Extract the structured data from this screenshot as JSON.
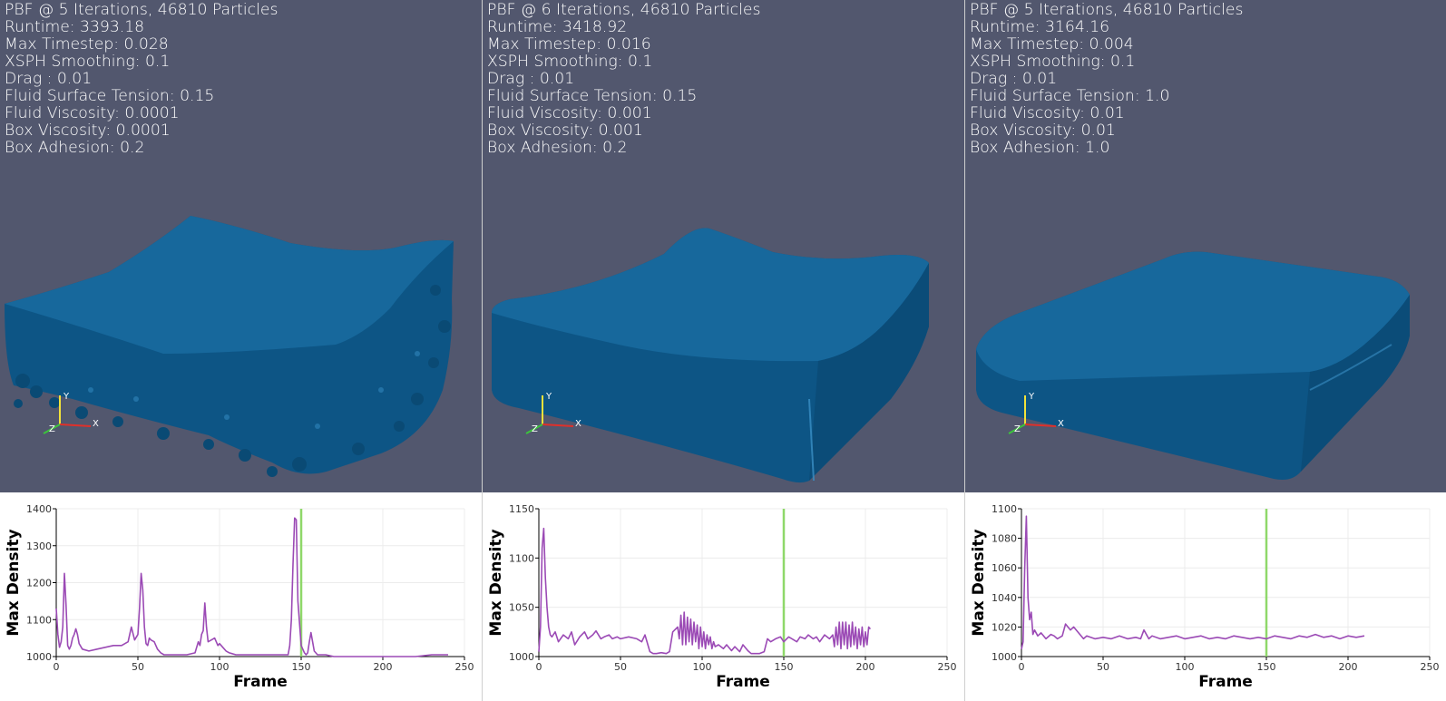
{
  "colors": {
    "background": "#52576e",
    "fluid": "#0d5585",
    "fluid_highlight": "#1f6fa6",
    "line": "#9b4ab5",
    "marker": "#8fd86a",
    "axis_x": "#e0302a",
    "axis_y": "#f2e23a",
    "axis_z": "#3cc43c"
  },
  "panels": [
    {
      "info": [
        "PBF @ 5 Iterations, 46810 Particles",
        "Runtime: 3393.18",
        "Max Timestep: 0.028",
        "XSPH Smoothing: 0.1",
        "Drag : 0.01",
        "Fluid Surface Tension: 0.15",
        "Fluid Viscosity: 0.0001",
        "Box Viscosity: 0.0001",
        "Box Adhesion: 0.2"
      ],
      "axis_labels": {
        "x": "X",
        "y": "Y",
        "z": "Z"
      }
    },
    {
      "info": [
        "PBF @ 6 Iterations, 46810 Particles",
        "Runtime: 3418.92",
        "Max Timestep: 0.016",
        "XSPH Smoothing: 0.1",
        "Drag : 0.01",
        "Fluid Surface Tension: 0.15",
        "Fluid Viscosity: 0.001",
        "Box Viscosity: 0.001",
        "Box Adhesion: 0.2"
      ],
      "axis_labels": {
        "x": "X",
        "y": "Y",
        "z": "Z"
      }
    },
    {
      "info": [
        "PBF @ 5 Iterations, 46810 Particles",
        "Runtime: 3164.16",
        "Max Timestep: 0.004",
        "XSPH Smoothing: 0.1",
        "Drag : 0.01",
        "Fluid Surface Tension: 1.0",
        "Fluid Viscosity: 0.01",
        "Box Viscosity: 0.01",
        "Box Adhesion: 1.0"
      ],
      "axis_labels": {
        "x": "X",
        "y": "Y",
        "z": "Z"
      }
    }
  ],
  "chart_data": [
    {
      "type": "line",
      "xlabel": "Frame",
      "ylabel": "Max Density",
      "xlim": [
        0,
        250
      ],
      "ylim": [
        1000,
        1400
      ],
      "xticks": [
        0,
        50,
        100,
        150,
        200,
        250
      ],
      "yticks": [
        1000,
        1100,
        1200,
        1300,
        1400
      ],
      "marker_x": 150,
      "grid": true,
      "series": [
        {
          "x": [
            0,
            1,
            2,
            3,
            4,
            5,
            6,
            7,
            8,
            9,
            10,
            11,
            12,
            13,
            14,
            16,
            20,
            25,
            30,
            35,
            40,
            44,
            46,
            48,
            50,
            51,
            52,
            53,
            54,
            55,
            56,
            57,
            58,
            60,
            62,
            64,
            66,
            68,
            70,
            75,
            80,
            85,
            87,
            88,
            89,
            90,
            91,
            92,
            93,
            95,
            97,
            98,
            99,
            100,
            102,
            104,
            106,
            110,
            115,
            120,
            125,
            130,
            135,
            138,
            140,
            142,
            143,
            144,
            145,
            146,
            147,
            148,
            150,
            152,
            153,
            154,
            155,
            156,
            157,
            158,
            160,
            165,
            170,
            175,
            180,
            190,
            200,
            210,
            220,
            230,
            240
          ],
          "y": [
            1130,
            1060,
            1025,
            1040,
            1080,
            1225,
            1140,
            1030,
            1020,
            1030,
            1050,
            1060,
            1075,
            1060,
            1035,
            1020,
            1015,
            1020,
            1025,
            1030,
            1030,
            1040,
            1080,
            1045,
            1060,
            1130,
            1225,
            1180,
            1080,
            1035,
            1030,
            1050,
            1045,
            1040,
            1020,
            1010,
            1005,
            1005,
            1005,
            1005,
            1005,
            1010,
            1040,
            1030,
            1060,
            1070,
            1145,
            1080,
            1040,
            1045,
            1050,
            1040,
            1030,
            1035,
            1025,
            1015,
            1010,
            1005,
            1005,
            1005,
            1005,
            1005,
            1005,
            1005,
            1005,
            1005,
            1030,
            1100,
            1250,
            1375,
            1370,
            1150,
            1030,
            1010,
            1005,
            1010,
            1040,
            1065,
            1040,
            1015,
            1005,
            1005,
            1000,
            1000,
            1000,
            1000,
            1000,
            1000,
            1000,
            1005,
            1005
          ]
        }
      ]
    },
    {
      "type": "line",
      "xlabel": "Frame",
      "ylabel": "Max Density",
      "xlim": [
        0,
        250
      ],
      "ylim": [
        1000,
        1150
      ],
      "xticks": [
        0,
        50,
        100,
        150,
        200,
        250
      ],
      "yticks": [
        1000,
        1050,
        1100,
        1150
      ],
      "marker_x": 150,
      "grid": true,
      "series": [
        {
          "x": [
            0,
            1,
            2,
            3,
            4,
            5,
            6,
            7,
            8,
            10,
            12,
            15,
            18,
            20,
            22,
            25,
            28,
            30,
            33,
            35,
            38,
            40,
            43,
            45,
            48,
            50,
            55,
            60,
            63,
            65,
            68,
            70,
            72,
            75,
            78,
            80,
            82,
            85,
            86,
            87,
            88,
            89,
            90,
            91,
            92,
            93,
            94,
            95,
            96,
            97,
            98,
            99,
            100,
            101,
            102,
            103,
            104,
            105,
            106,
            107,
            108,
            110,
            113,
            115,
            118,
            120,
            123,
            125,
            128,
            130,
            135,
            138,
            140,
            142,
            145,
            148,
            150,
            153,
            155,
            158,
            160,
            163,
            165,
            168,
            170,
            172,
            175,
            178,
            180,
            181,
            182,
            183,
            184,
            185,
            186,
            187,
            188,
            189,
            190,
            191,
            192,
            193,
            194,
            195,
            196,
            197,
            198,
            199,
            200,
            201,
            202,
            203
          ],
          "y": [
            1005,
            1030,
            1110,
            1130,
            1080,
            1050,
            1030,
            1022,
            1020,
            1025,
            1015,
            1022,
            1018,
            1025,
            1012,
            1020,
            1025,
            1018,
            1022,
            1026,
            1018,
            1020,
            1022,
            1018,
            1020,
            1018,
            1020,
            1018,
            1015,
            1022,
            1005,
            1003,
            1003,
            1004,
            1003,
            1005,
            1025,
            1030,
            1018,
            1042,
            1012,
            1045,
            1012,
            1040,
            1015,
            1038,
            1012,
            1035,
            1015,
            1032,
            1008,
            1030,
            1010,
            1025,
            1008,
            1022,
            1012,
            1020,
            1008,
            1015,
            1010,
            1012,
            1008,
            1012,
            1006,
            1010,
            1005,
            1012,
            1006,
            1003,
            1003,
            1005,
            1018,
            1015,
            1018,
            1020,
            1015,
            1020,
            1018,
            1015,
            1020,
            1018,
            1022,
            1018,
            1020,
            1015,
            1022,
            1018,
            1022,
            1010,
            1030,
            1012,
            1035,
            1008,
            1035,
            1012,
            1035,
            1008,
            1032,
            1010,
            1035,
            1012,
            1030,
            1008,
            1028,
            1012,
            1030,
            1010,
            1025,
            1012,
            1030,
            1028
          ]
        }
      ]
    },
    {
      "type": "line",
      "xlabel": "Frame",
      "ylabel": "Max Density",
      "xlim": [
        0,
        250
      ],
      "ylim": [
        1000,
        1100
      ],
      "xticks": [
        0,
        50,
        100,
        150,
        200,
        250
      ],
      "yticks": [
        1000,
        1020,
        1040,
        1060,
        1080,
        1100
      ],
      "marker_x": 150,
      "grid": true,
      "series": [
        {
          "x": [
            0,
            1,
            2,
            3,
            4,
            5,
            6,
            7,
            8,
            10,
            12,
            15,
            18,
            20,
            22,
            25,
            27,
            30,
            32,
            35,
            38,
            40,
            45,
            50,
            55,
            60,
            65,
            70,
            73,
            75,
            78,
            80,
            85,
            90,
            95,
            100,
            105,
            110,
            115,
            120,
            125,
            130,
            135,
            140,
            145,
            150,
            155,
            160,
            165,
            170,
            175,
            180,
            185,
            190,
            195,
            200,
            205,
            210
          ],
          "y": [
            1005,
            1010,
            1060,
            1095,
            1040,
            1025,
            1030,
            1015,
            1018,
            1014,
            1016,
            1012,
            1015,
            1014,
            1012,
            1014,
            1022,
            1018,
            1020,
            1016,
            1012,
            1014,
            1012,
            1013,
            1012,
            1014,
            1012,
            1013,
            1012,
            1018,
            1012,
            1014,
            1012,
            1013,
            1014,
            1012,
            1013,
            1014,
            1012,
            1013,
            1012,
            1014,
            1013,
            1012,
            1013,
            1012,
            1014,
            1013,
            1012,
            1014,
            1013,
            1015,
            1013,
            1014,
            1012,
            1014,
            1013,
            1014
          ]
        }
      ]
    }
  ]
}
